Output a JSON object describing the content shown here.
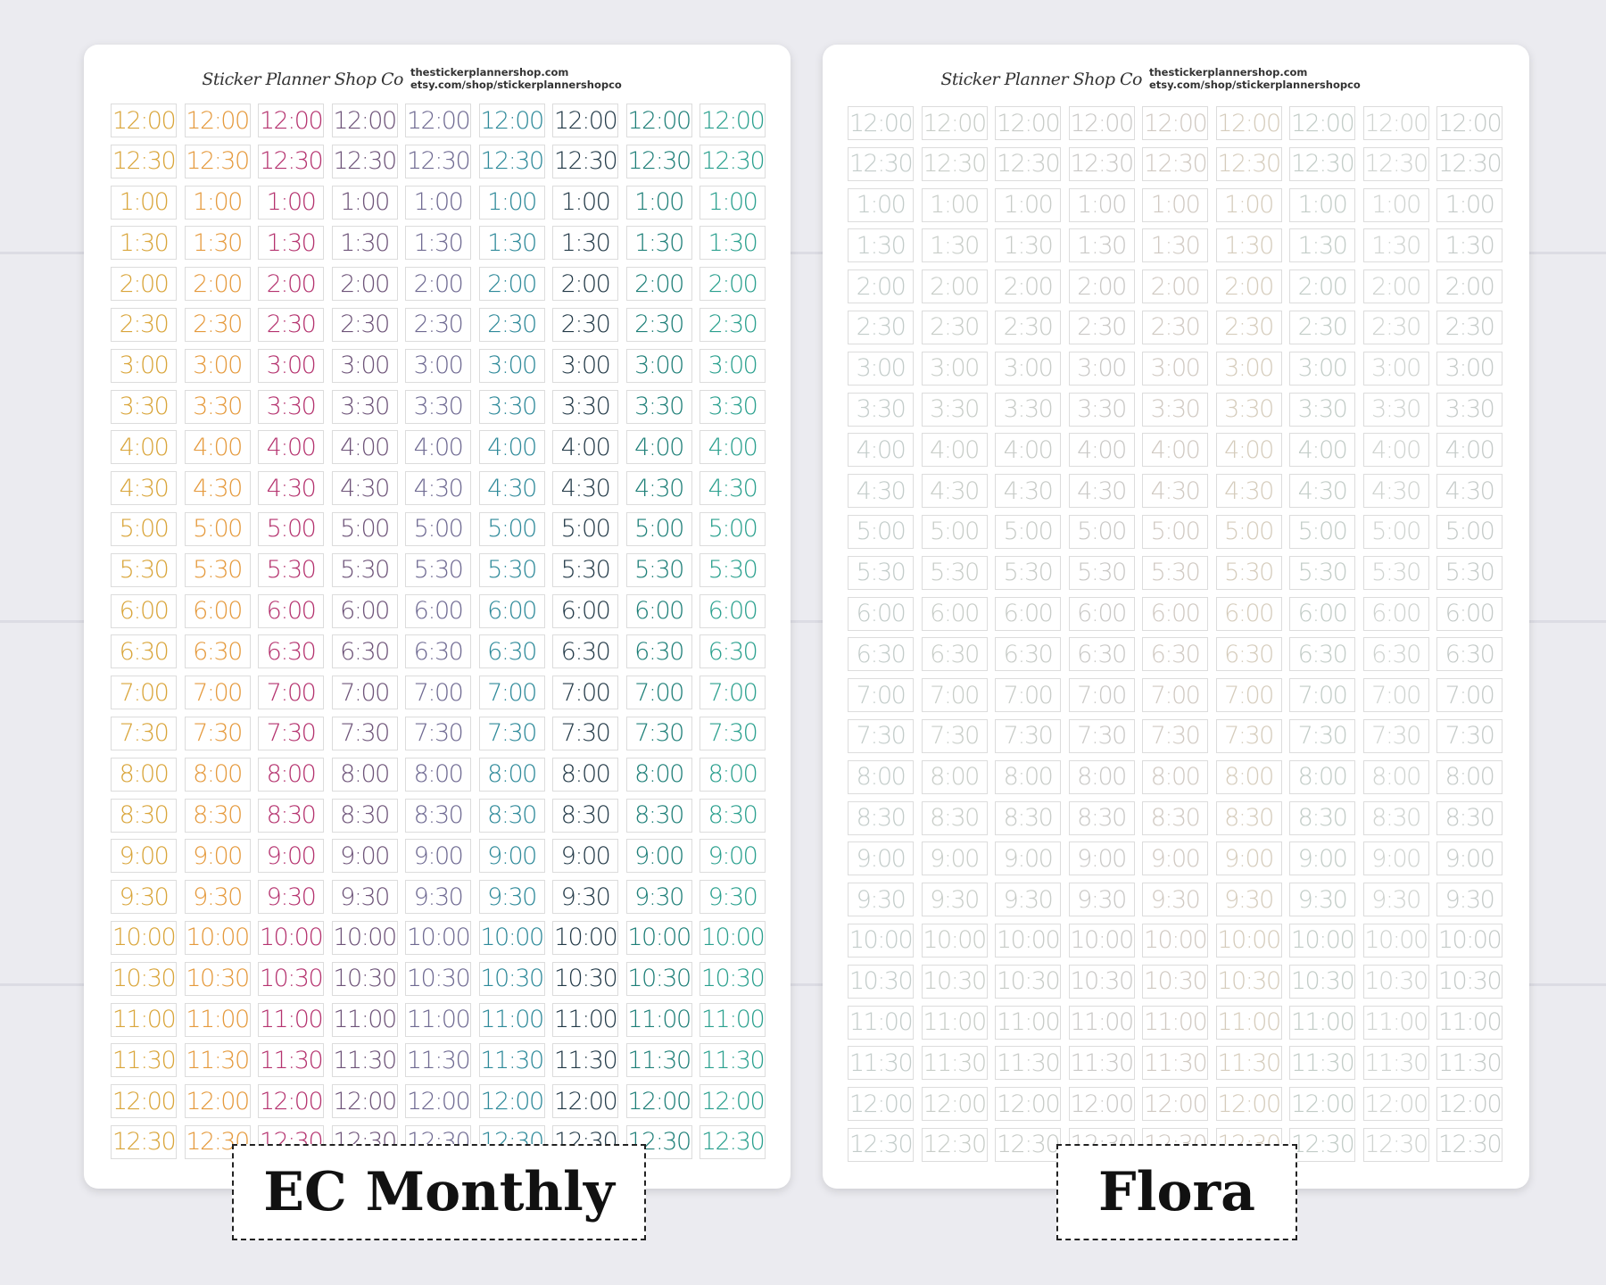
{
  "brand": {
    "script": "Sticker Planner Shop Co",
    "url1": "thestickerplannershop.com",
    "url2": "etsy.com/shop/stickerplannershopco"
  },
  "times": [
    "12:00",
    "12:30",
    "1:00",
    "1:30",
    "2:00",
    "2:30",
    "3:00",
    "3:30",
    "4:00",
    "4:30",
    "5:00",
    "5:30",
    "6:00",
    "6:30",
    "7:00",
    "7:30",
    "8:00",
    "8:30",
    "9:00",
    "9:30",
    "10:00",
    "10:30",
    "11:00",
    "11:30",
    "12:00",
    "12:30"
  ],
  "sheets": [
    {
      "id": "ec-monthly",
      "label": "EC Monthly",
      "column_colors": [
        "#d9a53a",
        "#e59a3d",
        "#b5336f",
        "#6e5479",
        "#6f6a92",
        "#2f8a9a",
        "#233a48",
        "#1e7f78",
        "#2aa08e"
      ]
    },
    {
      "id": "flora",
      "label": "Flora",
      "column_colors": [
        "#c3ccca",
        "#c8cdc8",
        "#c7cbc7",
        "#c9c8c6",
        "#d0c9c2",
        "#d5ccbc",
        "#c2ccc7",
        "#cfd3d0",
        "#c4cac8"
      ]
    }
  ]
}
